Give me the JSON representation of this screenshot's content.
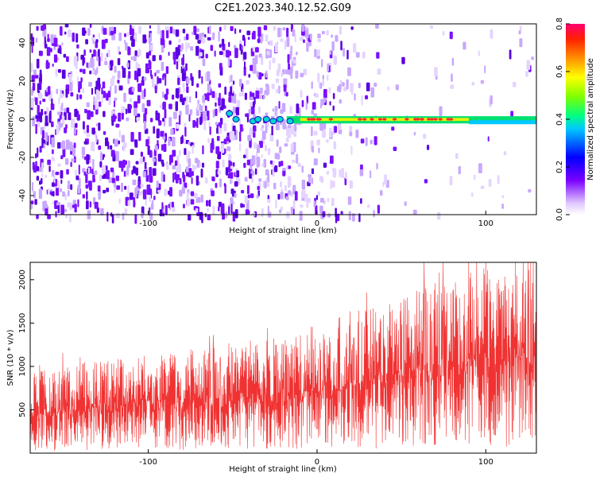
{
  "title": "C2E1.2023.340.12.52.G09",
  "chart_data": [
    {
      "type": "heatmap",
      "xlabel": "Height of straight line (km)",
      "ylabel": "Frequency (Hz)",
      "xlim": [
        -170,
        130
      ],
      "ylim": [
        -50,
        50
      ],
      "xticks": [
        -100,
        0,
        100
      ],
      "yticks": [
        -40,
        -20,
        0,
        20,
        40
      ],
      "colorbar": {
        "label": "Normalized spectral amplitude",
        "range": [
          0,
          0.8
        ],
        "ticks": [
          "0.0",
          "0.2",
          "0.4",
          "0.6",
          "0.8"
        ]
      },
      "grid": false
    },
    {
      "type": "line",
      "xlabel": "Height of straight line (km)",
      "ylabel": "SNR (10 * v/v)",
      "xlim": [
        -170,
        130
      ],
      "ylim": [
        0,
        2200
      ],
      "xticks": [
        -100,
        0,
        100
      ],
      "yticks": [
        500,
        1000,
        1500,
        2000
      ],
      "series_color": "#f03232",
      "series": [
        {
          "x": [
            -170,
            -150,
            -130,
            -110,
            -90,
            -70,
            -50,
            -30,
            -10,
            10,
            30,
            50,
            70,
            90,
            110,
            130
          ],
          "y": [
            500,
            560,
            580,
            620,
            640,
            660,
            700,
            720,
            780,
            850,
            920,
            1000,
            1080,
            1150,
            1220,
            1280
          ]
        }
      ],
      "grid": false
    }
  ]
}
